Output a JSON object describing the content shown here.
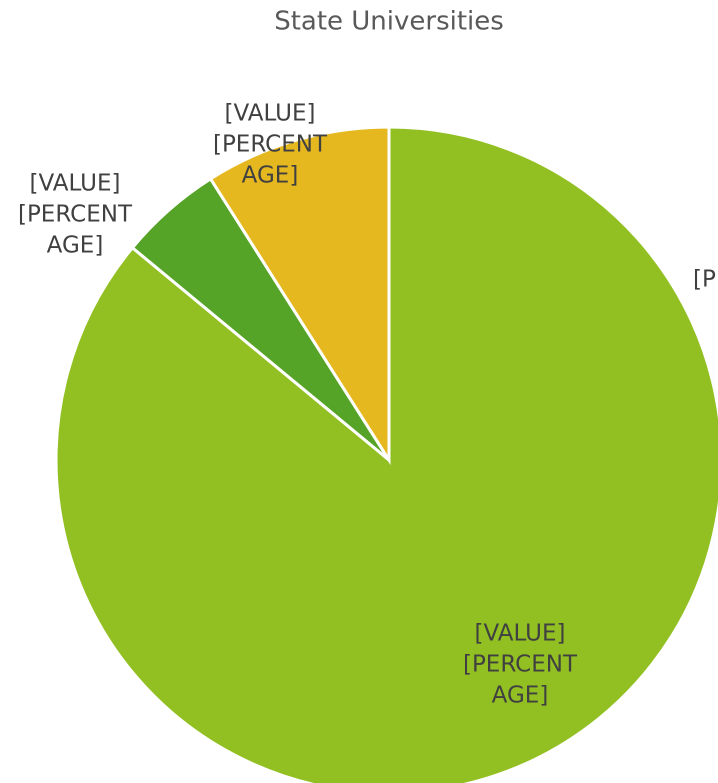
{
  "chart_data": {
    "type": "pie",
    "title": "State Universities",
    "values": [
      86,
      5,
      9
    ],
    "value_labels": [
      [
        "[VALUE]",
        "[PERCENT",
        "AGE]"
      ],
      [
        "[VALUE]",
        "[PERCENT",
        "AGE]"
      ],
      [
        "[VALUE]",
        "[PERCENT",
        "AGE]"
      ]
    ],
    "colors": [
      "#92c023",
      "#55a327",
      "#e6b820"
    ],
    "annotation": "[P"
  }
}
